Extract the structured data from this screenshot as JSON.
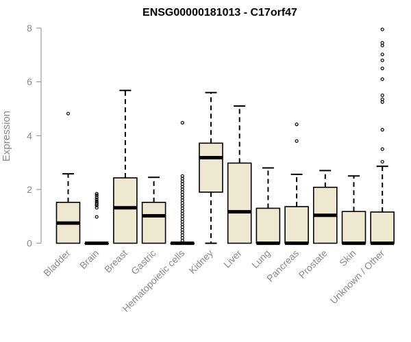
{
  "chart_data": {
    "type": "box",
    "title": "ENSG00000181013 - C17orf47",
    "xlabel": "",
    "ylabel": "Expression",
    "ylim": [
      0,
      8
    ],
    "yticks": [
      0,
      2,
      4,
      6,
      8
    ],
    "grid": false,
    "legend": "none",
    "box_fill": "#efe8d1",
    "stroke": "#000000",
    "categories": [
      "Bladder",
      "Brain",
      "Breast",
      "Gastric",
      "Hematopoietic cells",
      "Kidney",
      "Liver",
      "Lung",
      "Pancreas",
      "Prostate",
      "Skin",
      "Unknown / Other"
    ],
    "boxes": [
      {
        "q1": 0,
        "median": 0.75,
        "q3": 1.52,
        "whisker_low": 0,
        "whisker_high": 2.58,
        "outliers": [
          4.82
        ]
      },
      {
        "q1": 0,
        "median": 0,
        "q3": 0,
        "whisker_low": 0,
        "whisker_high": 0,
        "outliers": [
          0.98,
          1.32,
          1.4,
          1.45,
          1.5,
          1.56,
          1.63,
          1.7,
          1.78,
          1.84
        ]
      },
      {
        "q1": 0,
        "median": 1.32,
        "q3": 2.43,
        "whisker_low": 0,
        "whisker_high": 5.68,
        "outliers": []
      },
      {
        "q1": 0,
        "median": 1.02,
        "q3": 1.52,
        "whisker_low": 0,
        "whisker_high": 2.45,
        "outliers": []
      },
      {
        "q1": 0,
        "median": 0,
        "q3": 0,
        "whisker_low": 0,
        "whisker_high": 0,
        "outliers": [
          0.1,
          0.2,
          0.3,
          0.4,
          0.5,
          0.6,
          0.7,
          0.8,
          0.9,
          1.0,
          1.1,
          1.2,
          1.3,
          1.4,
          1.5,
          1.6,
          1.7,
          1.8,
          1.9,
          2.0,
          2.1,
          2.2,
          2.3,
          2.4,
          2.5,
          4.48
        ]
      },
      {
        "q1": 1.9,
        "median": 3.18,
        "q3": 3.72,
        "whisker_low": 0,
        "whisker_high": 5.6,
        "outliers": []
      },
      {
        "q1": 0,
        "median": 1.17,
        "q3": 2.98,
        "whisker_low": 0,
        "whisker_high": 5.1,
        "outliers": []
      },
      {
        "q1": 0,
        "median": 0,
        "q3": 1.3,
        "whisker_low": 0,
        "whisker_high": 2.8,
        "outliers": []
      },
      {
        "q1": 0,
        "median": 0,
        "q3": 1.36,
        "whisker_low": 0,
        "whisker_high": 2.56,
        "outliers": [
          3.8,
          4.42
        ]
      },
      {
        "q1": 0,
        "median": 1.04,
        "q3": 2.08,
        "whisker_low": 0,
        "whisker_high": 2.7,
        "outliers": []
      },
      {
        "q1": 0,
        "median": 0,
        "q3": 1.18,
        "whisker_low": 0,
        "whisker_high": 2.5,
        "outliers": []
      },
      {
        "q1": 0,
        "median": 0,
        "q3": 1.16,
        "whisker_low": 0,
        "whisker_high": 2.86,
        "outliers": [
          3.03,
          3.5,
          4.22,
          5.25,
          5.35,
          5.5,
          6.1,
          6.5,
          6.8,
          7.02,
          7.35,
          7.45,
          7.95
        ]
      }
    ]
  }
}
